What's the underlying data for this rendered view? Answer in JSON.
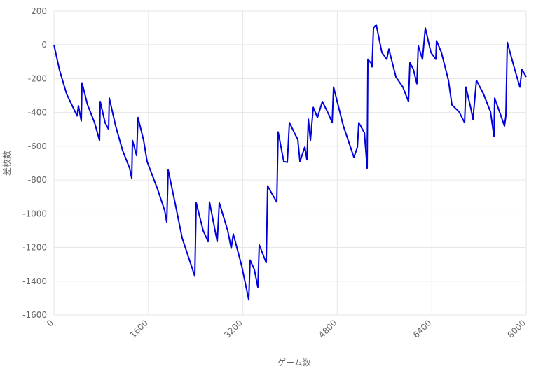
{
  "chart_data": {
    "type": "line",
    "x_label": "ゲーム数",
    "y_label": "差枚数",
    "xlim": [
      0,
      8000
    ],
    "xticks": [
      0,
      1600,
      3200,
      4800,
      6400,
      8000
    ],
    "ylim": [
      -1600,
      200
    ],
    "yticks": [
      200,
      0,
      -200,
      -400,
      -600,
      -800,
      -1000,
      -1200,
      -1400,
      -1600
    ],
    "grid": true,
    "series": [
      {
        "color": "#0000dd",
        "x": [
          0,
          95,
          214,
          392,
          415,
          463,
          475,
          570,
          688,
          772,
          784,
          866,
          926,
          938,
          1045,
          1163,
          1282,
          1318,
          1330,
          1400,
          1424,
          1519,
          1578,
          1756,
          1875,
          1911,
          1935,
          2054,
          2173,
          2291,
          2386,
          2410,
          2528,
          2612,
          2635,
          2766,
          2801,
          2944,
          3003,
          3038,
          3181,
          3300,
          3323,
          3394,
          3454,
          3478,
          3573,
          3596,
          3620,
          3715,
          3775,
          3798,
          3893,
          3953,
          3989,
          4072,
          4131,
          4167,
          4250,
          4286,
          4310,
          4345,
          4393,
          4464,
          4547,
          4666,
          4713,
          4737,
          4903,
          5081,
          5141,
          5164,
          5259,
          5306,
          5318,
          5377,
          5389,
          5413,
          5460,
          5555,
          5638,
          5674,
          5793,
          5911,
          6006,
          6030,
          6089,
          6148,
          6172,
          6243,
          6291,
          6386,
          6469,
          6481,
          6564,
          6683,
          6742,
          6861,
          6956,
          6979,
          7062,
          7098,
          7157,
          7276,
          7395,
          7454,
          7466,
          7573,
          7632,
          7656,
          7680,
          7810,
          7893,
          7929,
          8000
        ],
        "values": [
          0,
          -150,
          -290,
          -420,
          -360,
          -450,
          -225,
          -355,
          -460,
          -565,
          -335,
          -460,
          -500,
          -315,
          -480,
          -625,
          -730,
          -790,
          -565,
          -655,
          -430,
          -565,
          -690,
          -855,
          -980,
          -1050,
          -740,
          -940,
          -1145,
          -1270,
          -1370,
          -935,
          -1100,
          -1165,
          -930,
          -1165,
          -935,
          -1100,
          -1205,
          -1120,
          -1310,
          -1510,
          -1275,
          -1330,
          -1435,
          -1185,
          -1270,
          -1290,
          -835,
          -895,
          -930,
          -515,
          -690,
          -695,
          -460,
          -520,
          -560,
          -690,
          -605,
          -680,
          -440,
          -565,
          -370,
          -430,
          -335,
          -420,
          -460,
          -250,
          -480,
          -665,
          -605,
          -460,
          -520,
          -730,
          -85,
          -110,
          -130,
          100,
          120,
          -45,
          -85,
          -25,
          -190,
          -250,
          -335,
          -105,
          -145,
          -230,
          -5,
          -85,
          100,
          -45,
          -85,
          25,
          -45,
          -210,
          -355,
          -395,
          -460,
          -250,
          -375,
          -440,
          -210,
          -290,
          -395,
          -540,
          -315,
          -420,
          -480,
          -420,
          15,
          -150,
          -250,
          -145,
          -190
        ]
      }
    ]
  }
}
